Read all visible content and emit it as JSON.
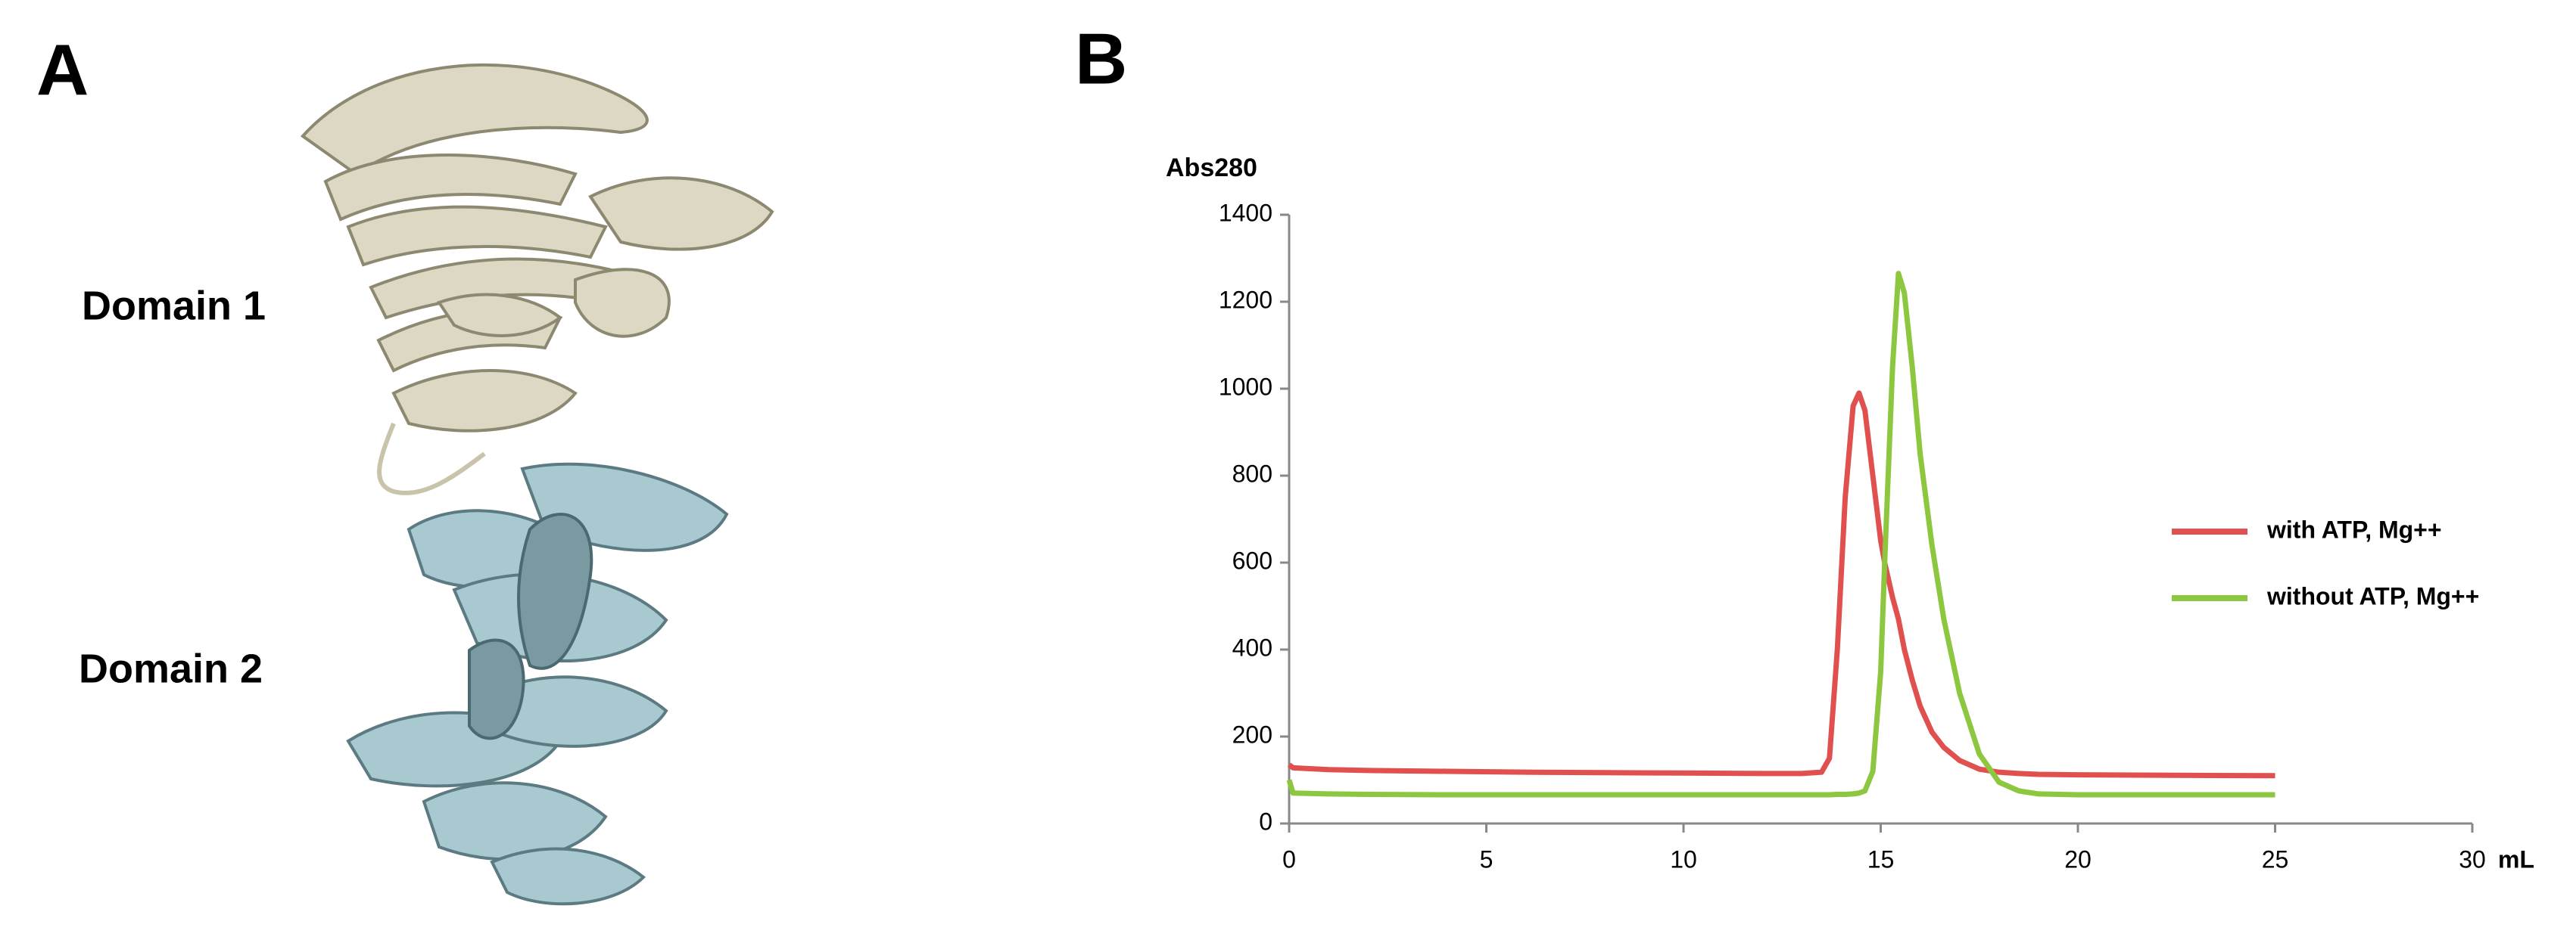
{
  "panel_a": {
    "label": "A",
    "domains": [
      "Domain 1",
      "Domain 2"
    ]
  },
  "chart_data": {
    "type": "line",
    "panel_label": "B",
    "y_label": "Abs280",
    "x_label": "mL",
    "x": [
      0,
      0.1,
      1,
      2,
      4,
      6,
      8,
      10,
      12,
      13,
      13.5,
      13.7,
      13.9,
      14.1,
      14.3,
      14.45,
      14.6,
      14.8,
      15.0,
      15.1,
      15.3,
      15.45,
      15.6,
      15.8,
      16.0,
      16.3,
      16.6,
      17.0,
      17.5,
      18,
      18.5,
      19,
      20,
      22,
      25
    ],
    "series": [
      {
        "name": "with ATP, Mg++",
        "color": "#e0504f",
        "values": [
          135,
          128,
          124,
          122,
          120,
          118,
          117,
          116,
          115,
          115,
          118,
          150,
          400,
          750,
          960,
          990,
          950,
          800,
          650,
          600,
          520,
          470,
          400,
          330,
          270,
          210,
          175,
          145,
          125,
          118,
          115,
          113,
          112,
          111,
          110
        ]
      },
      {
        "name": "without ATP, Mg++",
        "color": "#8dc63f",
        "values": [
          100,
          70,
          68,
          67,
          66,
          66,
          66,
          66,
          66,
          66,
          66,
          66,
          67,
          67,
          68,
          70,
          75,
          120,
          350,
          600,
          1050,
          1265,
          1220,
          1050,
          850,
          640,
          470,
          300,
          160,
          95,
          75,
          68,
          66,
          66,
          66
        ]
      }
    ],
    "xlim": [
      0,
      30
    ],
    "xticks": [
      0,
      5,
      10,
      15,
      20,
      25,
      30
    ],
    "ylim": [
      0,
      1400
    ],
    "yticks": [
      0,
      200,
      400,
      600,
      800,
      1000,
      1200,
      1400
    ],
    "grid": false,
    "legend": "right"
  }
}
